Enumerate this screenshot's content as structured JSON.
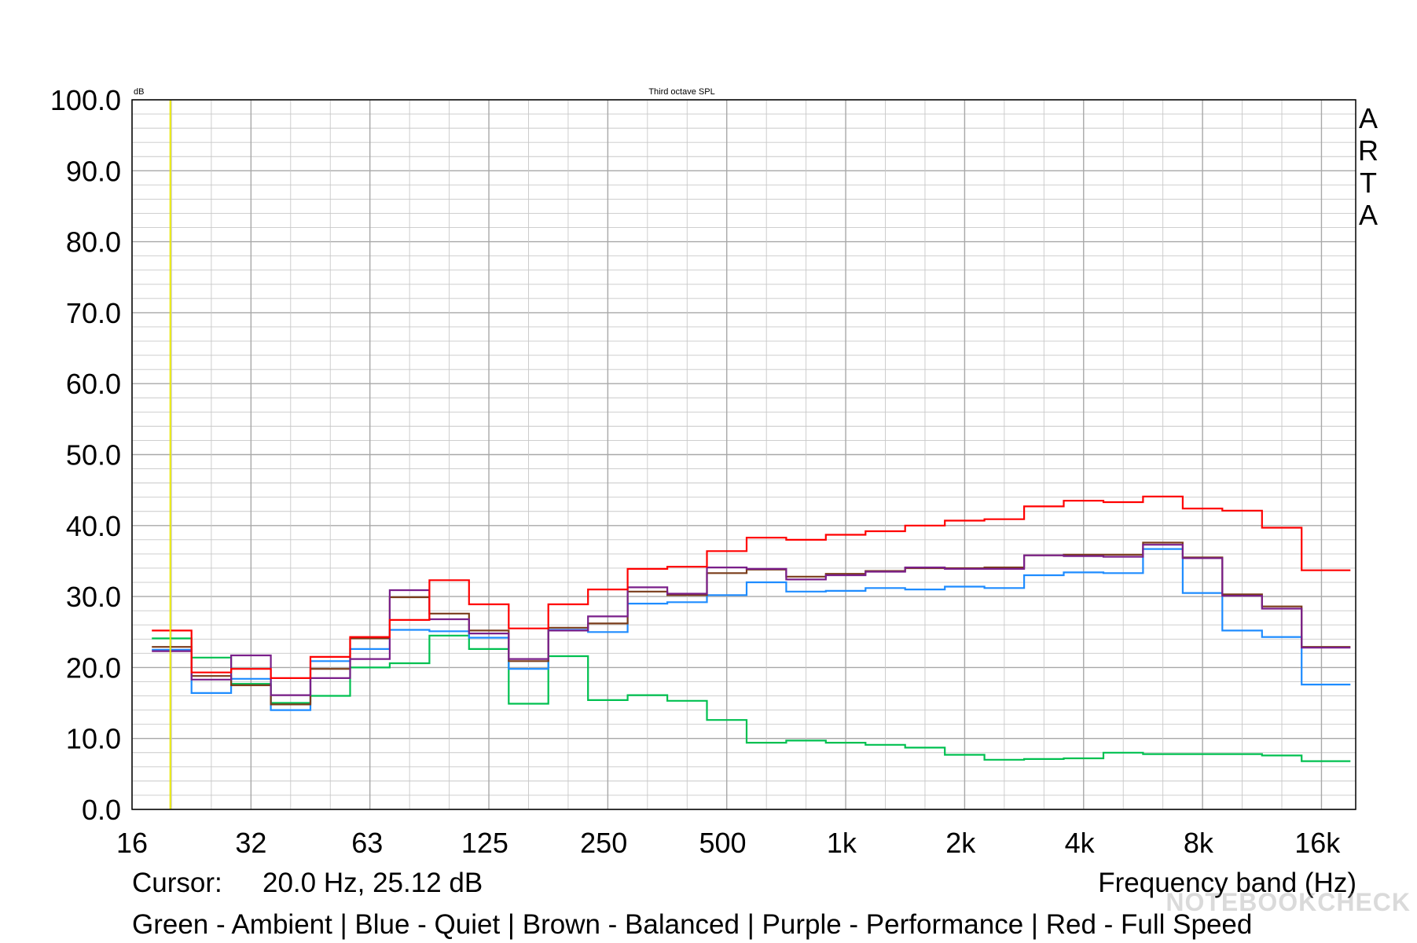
{
  "chart_data": {
    "type": "line",
    "title": "Third octave SPL",
    "yunit": "dB",
    "brand": "ARTA",
    "xscale": "log",
    "ylim": [
      0,
      100
    ],
    "xlim": [
      16,
      20000
    ],
    "grid": true,
    "yticks": [
      "100.0",
      "90.0",
      "80.0",
      "70.0",
      "60.0",
      "50.0",
      "40.0",
      "30.0",
      "20.0",
      "10.0",
      "0.0"
    ],
    "xticks": [
      {
        "value": 16,
        "label": "16"
      },
      {
        "value": 32,
        "label": "32"
      },
      {
        "value": 63,
        "label": "63"
      },
      {
        "value": 125,
        "label": "125"
      },
      {
        "value": 250,
        "label": "250"
      },
      {
        "value": 500,
        "label": "500"
      },
      {
        "value": 1000,
        "label": "1k"
      },
      {
        "value": 2000,
        "label": "2k"
      },
      {
        "value": 4000,
        "label": "4k"
      },
      {
        "value": 8000,
        "label": "8k"
      },
      {
        "value": 16000,
        "label": "16k"
      }
    ],
    "cursor_x": 20,
    "bands": [
      20,
      25,
      31.5,
      40,
      50,
      63,
      80,
      100,
      125,
      160,
      200,
      250,
      315,
      400,
      500,
      630,
      800,
      1000,
      1250,
      1600,
      2000,
      2500,
      3150,
      4000,
      5000,
      6300,
      8000,
      10000,
      12500,
      16000,
      20000
    ],
    "series": [
      {
        "color": "#00c050",
        "values": [
          24.1,
          21.4,
          17.7,
          15.0,
          16.0,
          20.0,
          20.6,
          24.5,
          22.6,
          14.9,
          21.6,
          15.4,
          16.1,
          15.3,
          12.6,
          9.4,
          9.7,
          9.4,
          9.1,
          8.7,
          7.7,
          7.0,
          7.1,
          7.2,
          8.0,
          7.8,
          7.8,
          7.8,
          7.6,
          6.8,
          6.8
        ]
      },
      {
        "color": "#1e8cff",
        "values": [
          22.5,
          16.4,
          18.4,
          14.0,
          20.9,
          22.6,
          25.3,
          25.1,
          24.2,
          19.8,
          25.3,
          25.0,
          29.0,
          29.2,
          30.2,
          32.0,
          30.7,
          30.8,
          31.2,
          31.0,
          31.4,
          31.2,
          33.0,
          33.4,
          33.3,
          36.7,
          30.5,
          25.2,
          24.3,
          17.6,
          17.6
        ]
      },
      {
        "color": "#7a3c1a",
        "values": [
          22.9,
          18.8,
          17.5,
          14.8,
          19.8,
          24.1,
          29.9,
          27.6,
          25.2,
          20.9,
          25.6,
          26.2,
          30.7,
          30.2,
          33.3,
          33.8,
          32.8,
          33.2,
          33.6,
          34.0,
          34.0,
          34.1,
          35.8,
          35.9,
          35.9,
          37.6,
          35.5,
          30.3,
          28.6,
          22.9,
          22.9
        ]
      },
      {
        "color": "#7a1f8a",
        "values": [
          22.3,
          18.3,
          21.7,
          16.1,
          18.5,
          21.2,
          30.9,
          26.8,
          24.8,
          21.2,
          25.2,
          27.2,
          31.3,
          30.4,
          34.1,
          33.9,
          32.4,
          33.0,
          33.5,
          34.1,
          33.9,
          33.9,
          35.8,
          35.7,
          35.6,
          37.3,
          35.4,
          30.1,
          28.3,
          22.8,
          22.8
        ]
      },
      {
        "color": "#ff0000",
        "values": [
          25.2,
          19.3,
          19.8,
          18.5,
          21.5,
          24.3,
          26.7,
          32.3,
          28.9,
          25.5,
          28.9,
          31.0,
          33.9,
          34.2,
          36.4,
          38.3,
          38.0,
          38.7,
          39.2,
          40.0,
          40.7,
          40.9,
          42.7,
          43.5,
          43.3,
          44.1,
          42.4,
          42.1,
          39.7,
          33.7,
          33.7
        ]
      }
    ]
  },
  "cursor": {
    "label": "Cursor:",
    "value": "20.0 Hz, 25.12 dB"
  },
  "xlabel": "Frequency band (Hz)",
  "legend_text": "Green - Ambient | Blue - Quiet | Brown - Balanced | Purple - Performance |  Red - Full Speed",
  "watermark": "NOTEBOOKCHECK",
  "colors": {
    "grid": "#c8c8c8",
    "cursor_line": "#e6e600",
    "frame": "#000000"
  }
}
